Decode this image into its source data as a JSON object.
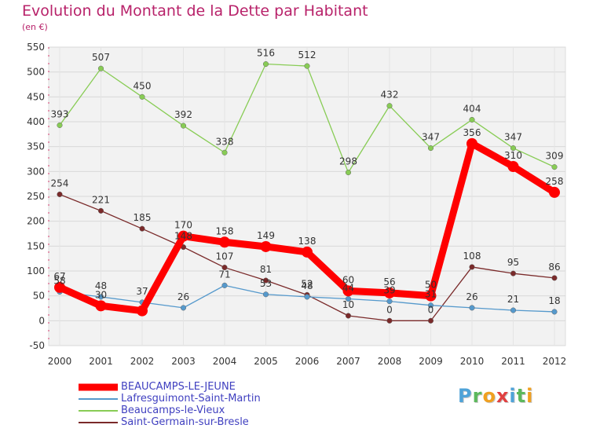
{
  "chart_data": {
    "type": "line",
    "title": "Evolution du Montant de la Dette par Habitant",
    "subtitle": "(en €)",
    "xlabel": "",
    "ylabel": "",
    "x": [
      "2000",
      "2001",
      "2002",
      "2003",
      "2004",
      "2005",
      "2006",
      "2007",
      "2008",
      "2009",
      "2010",
      "2011",
      "2012"
    ],
    "ylim": [
      -50,
      550
    ],
    "yticks": [
      -50,
      0,
      50,
      100,
      150,
      200,
      250,
      300,
      350,
      400,
      450,
      500,
      550
    ],
    "ytick_labels": [
      "-50",
      "0",
      "50",
      "100",
      "150",
      "200",
      "250",
      "300",
      "350",
      "400",
      "450",
      "500",
      "550"
    ],
    "grid": true,
    "legend_placement": "bottom-left",
    "series": [
      {
        "name": "BEAUCAMPS-LE-JEUNE",
        "color": "#ff0000",
        "values": [
          67,
          30,
          20,
          170,
          158,
          149,
          138,
          60,
          56,
          50,
          356,
          310,
          258
        ],
        "labels": [
          "67",
          "30",
          "",
          "170",
          "158",
          "149",
          "138",
          "60",
          "56",
          "50",
          "356",
          "310",
          "258"
        ]
      },
      {
        "name": "Lafresguimont-Saint-Martin",
        "color": "#5599cc",
        "values": [
          58,
          48,
          37,
          26,
          71,
          53,
          48,
          44,
          39,
          31,
          26,
          21,
          18
        ],
        "labels": [
          "58",
          "48",
          "37",
          "26",
          "71",
          "53",
          "48",
          "44",
          "39",
          "31",
          "26",
          "21",
          "18"
        ]
      },
      {
        "name": "Beaucamps-le-Vieux",
        "color": "#88cc55",
        "values": [
          393,
          507,
          450,
          392,
          338,
          516,
          512,
          298,
          432,
          347,
          404,
          347,
          309
        ],
        "labels": [
          "393",
          "507",
          "450",
          "392",
          "338",
          "516",
          "512",
          "298",
          "432",
          "347",
          "404",
          "347",
          "309"
        ]
      },
      {
        "name": "Saint-Germain-sur-Bresle",
        "color": "#7a2a2a",
        "values": [
          254,
          221,
          185,
          148,
          107,
          81,
          52,
          10,
          0,
          0,
          108,
          95,
          86
        ],
        "labels": [
          "254",
          "221",
          "185",
          "148",
          "107",
          "81",
          "52",
          "10",
          "0",
          "0",
          "108",
          "95",
          "86"
        ]
      }
    ]
  },
  "logo": {
    "letters": [
      {
        "ch": "P",
        "color": "#4fa3d8"
      },
      {
        "ch": "r",
        "color": "#5cb85c"
      },
      {
        "ch": "o",
        "color": "#f0a020"
      },
      {
        "ch": "x",
        "color": "#e04040"
      },
      {
        "ch": "i",
        "color": "#4fa3d8"
      },
      {
        "ch": "t",
        "color": "#5cb85c"
      },
      {
        "ch": "i",
        "color": "#f0a020"
      }
    ]
  }
}
